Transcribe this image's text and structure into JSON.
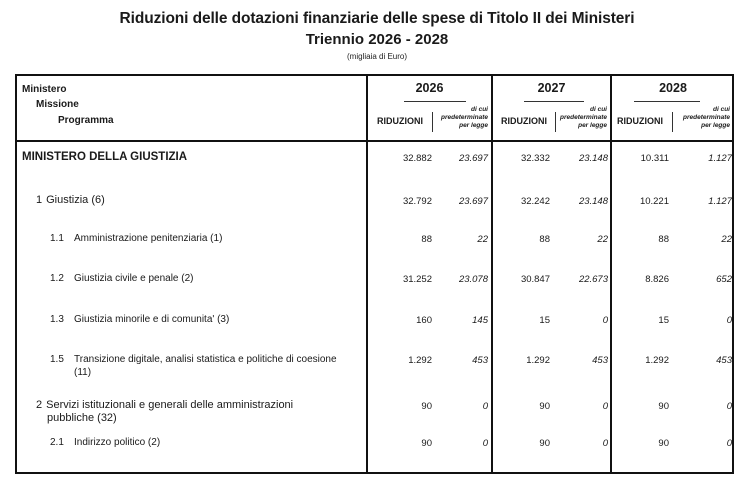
{
  "header": {
    "title": "Riduzioni delle dotazioni finanziarie delle spese di Titolo II dei Ministeri",
    "subtitle": "Triennio 2026 - 2028",
    "unit": "(migliaia di Euro)"
  },
  "table": {
    "col_labels": {
      "ministero": "Ministero",
      "missione": "Missione",
      "programma": "Programma"
    },
    "years": [
      "2026",
      "2027",
      "2028"
    ],
    "sub_headers": {
      "riduzioni": "RIDUZIONI",
      "dicui_line1": "di cui",
      "dicui_line2": "predeterminate",
      "dicui_line3": "per legge"
    },
    "rows": [
      {
        "level": "ministero",
        "code": "",
        "label": "MINISTERO DELLA GIUSTIZIA",
        "label2": "",
        "values": [
          "32.882",
          "23.697",
          "32.332",
          "23.148",
          "10.311",
          "1.127"
        ]
      },
      {
        "level": "missione",
        "code": "1",
        "label": "Giustizia (6)",
        "label2": "",
        "values": [
          "32.792",
          "23.697",
          "32.242",
          "23.148",
          "10.221",
          "1.127"
        ]
      },
      {
        "level": "programma",
        "code": "1.1",
        "label": "Amministrazione penitenziaria (1)",
        "label2": "",
        "values": [
          "88",
          "22",
          "88",
          "22",
          "88",
          "22"
        ]
      },
      {
        "level": "programma",
        "code": "1.2",
        "label": "Giustizia civile e penale (2)",
        "label2": "",
        "values": [
          "31.252",
          "23.078",
          "30.847",
          "22.673",
          "8.826",
          "652"
        ]
      },
      {
        "level": "programma",
        "code": "1.3",
        "label": "Giustizia minorile e di comunita' (3)",
        "label2": "",
        "values": [
          "160",
          "145",
          "15",
          "0",
          "15",
          "0"
        ]
      },
      {
        "level": "programma",
        "code": "1.5",
        "label": "Transizione digitale, analisi statistica e politiche di coesione",
        "label2": "(11)",
        "values": [
          "1.292",
          "453",
          "1.292",
          "453",
          "1.292",
          "453"
        ]
      },
      {
        "level": "missione",
        "code": "2",
        "label": "Servizi istituzionali e generali delle amministrazioni",
        "label2": "pubbliche (32)",
        "values": [
          "90",
          "0",
          "90",
          "0",
          "90",
          "0"
        ]
      },
      {
        "level": "programma",
        "code": "2.1",
        "label": "Indirizzo politico (2)",
        "label2": "",
        "values": [
          "90",
          "0",
          "90",
          "0",
          "90",
          "0"
        ]
      }
    ]
  }
}
